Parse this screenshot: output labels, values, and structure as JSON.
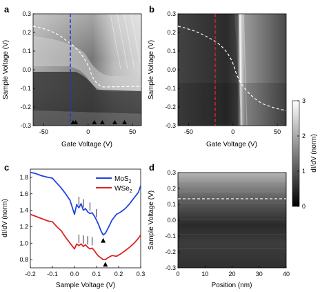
{
  "figure": {
    "panels": [
      {
        "id": "a",
        "label": "a",
        "xlabel": "Gate Voltage (V)",
        "ylabel": "Sample Voltage (V)",
        "xlim": [
          -62,
          60
        ],
        "ylim": [
          -0.3,
          0.3
        ],
        "xticks": [
          "-50",
          "0",
          "50"
        ],
        "xtick_values": [
          -50,
          0,
          50
        ],
        "yticks": [
          "0.3",
          "0.2",
          "0.1",
          "0.0",
          "-0.1",
          "-0.2",
          "-0.3"
        ],
        "ytick_values": [
          0.3,
          0.2,
          0.1,
          0.0,
          -0.1,
          -0.2,
          -0.3
        ],
        "vline_gate_voltage": -20,
        "vline_color": "#2233dd",
        "arrow_gate_voltages": [
          -17,
          -14,
          7,
          16,
          30,
          41
        ]
      },
      {
        "id": "b",
        "label": "b",
        "xlabel": "Gate Voltage (V)",
        "ylabel": "Sample Voltage (V)",
        "xlim": [
          -62,
          60
        ],
        "ylim": [
          -0.3,
          0.3
        ],
        "xticks": [
          "-50",
          "0",
          "50"
        ],
        "xtick_values": [
          -50,
          0,
          50
        ],
        "yticks": [
          "0.3",
          "0.2",
          "0.1",
          "0.0",
          "-0.1",
          "-0.2",
          "-0.3"
        ],
        "ytick_values": [
          0.3,
          0.2,
          0.1,
          0.0,
          -0.1,
          -0.2,
          -0.3
        ],
        "vline_gate_voltage": -20,
        "vline_color": "#dd2222"
      },
      {
        "id": "d",
        "label": "d",
        "xlabel": "Position (nm)",
        "ylabel": "Sample Voltage (V)",
        "xlim": [
          0,
          40
        ],
        "ylim": [
          -0.3,
          0.3
        ],
        "xticks": [
          "0",
          "10",
          "20",
          "30",
          "40"
        ],
        "xtick_values": [
          0,
          10,
          20,
          30,
          40
        ],
        "yticks": [
          "0.3",
          "0.2",
          "0.1",
          "0.0",
          "-0.1",
          "-0.2",
          "-0.3"
        ],
        "ytick_values": [
          0.3,
          0.2,
          0.1,
          0.0,
          -0.1,
          -0.2,
          -0.3
        ],
        "dashed_level": 0.135
      }
    ],
    "colorbar": {
      "label": "dI/dV (norm)",
      "ticks": [
        "3",
        "2",
        "1",
        "0"
      ],
      "tick_values": [
        3,
        2,
        1,
        0
      ],
      "range": [
        0,
        3
      ]
    },
    "panel_c": {
      "label": "c",
      "xlabel": "Sample Voltage (V)",
      "ylabel": "dI/dV (norm)",
      "legend": [
        "MoS",
        "WSe"
      ],
      "legend_subscripts": [
        "2",
        "2"
      ]
    }
  },
  "chart_data": {
    "type": "line",
    "xlabel": "Sample Voltage (V)",
    "ylabel": "dI/dV (norm)",
    "xlim": [
      -0.2,
      0.3
    ],
    "ylim": [
      0.7,
      1.9
    ],
    "xticks": [
      "-0.2",
      "-0.1",
      "0.0",
      "0.1",
      "0.2",
      "0.3"
    ],
    "xtick_values": [
      -0.2,
      -0.1,
      0.0,
      0.1,
      0.2,
      0.3
    ],
    "yticks": [
      "1.8",
      "1.6",
      "1.4",
      "1.2",
      "1.0",
      "0.8"
    ],
    "ytick_values": [
      1.8,
      1.6,
      1.4,
      1.2,
      1.0,
      0.8
    ],
    "legend_position": "top-right",
    "series": [
      {
        "name": "MoS2",
        "color": "#2244dd",
        "x": [
          -0.2,
          -0.18,
          -0.15,
          -0.12,
          -0.1,
          -0.08,
          -0.06,
          -0.04,
          -0.02,
          0.0,
          0.01,
          0.02,
          0.03,
          0.04,
          0.05,
          0.06,
          0.07,
          0.08,
          0.09,
          0.1,
          0.11,
          0.12,
          0.13,
          0.14,
          0.15,
          0.17,
          0.19,
          0.21,
          0.23,
          0.25,
          0.27,
          0.29,
          0.3
        ],
        "y": [
          1.86,
          1.85,
          1.82,
          1.8,
          1.79,
          1.73,
          1.67,
          1.6,
          1.52,
          1.35,
          1.47,
          1.43,
          1.48,
          1.4,
          1.42,
          1.38,
          1.36,
          1.37,
          1.33,
          1.28,
          1.22,
          1.15,
          1.1,
          1.12,
          1.17,
          1.28,
          1.35,
          1.38,
          1.42,
          1.48,
          1.55,
          1.62,
          1.7
        ]
      },
      {
        "name": "WSe2",
        "color": "#dd2222",
        "x": [
          -0.2,
          -0.18,
          -0.15,
          -0.12,
          -0.1,
          -0.08,
          -0.06,
          -0.04,
          -0.02,
          0.0,
          0.01,
          0.02,
          0.03,
          0.04,
          0.05,
          0.06,
          0.07,
          0.08,
          0.09,
          0.1,
          0.11,
          0.12,
          0.13,
          0.14,
          0.15,
          0.17,
          0.19,
          0.21,
          0.23,
          0.25,
          0.27,
          0.29,
          0.3
        ],
        "y": [
          1.35,
          1.33,
          1.3,
          1.27,
          1.26,
          1.2,
          1.15,
          1.07,
          1.0,
          0.93,
          0.99,
          0.97,
          0.99,
          0.96,
          0.98,
          0.95,
          0.93,
          0.94,
          0.91,
          0.87,
          0.84,
          0.82,
          0.8,
          0.8,
          0.82,
          0.85,
          0.84,
          0.87,
          0.91,
          0.95,
          1.0,
          1.06,
          1.1
        ]
      }
    ],
    "markers": {
      "MoS2_ticks_x": [
        0.02,
        0.04,
        0.07,
        0.1
      ],
      "WSe2_ticks_x": [
        0.02,
        0.04,
        0.06,
        0.08
      ],
      "triangles": [
        {
          "x": 0.13,
          "y": 1.03
        },
        {
          "x": 0.14,
          "y": 0.74
        }
      ]
    }
  }
}
